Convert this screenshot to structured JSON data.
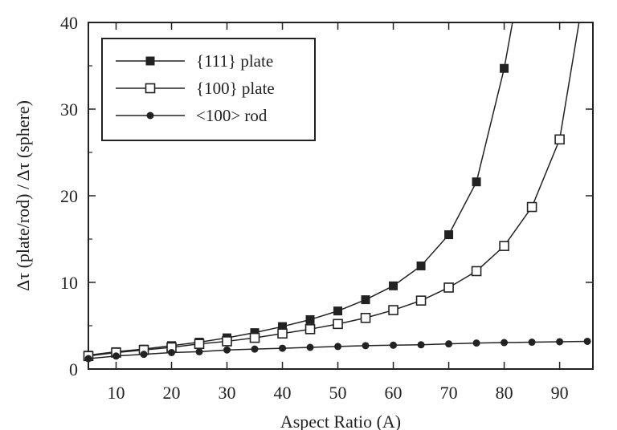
{
  "chart_data": {
    "type": "line",
    "title": "",
    "xlabel": "Aspect Ratio (A)",
    "ylabel": "Δτ (plate/rod) / Δτ (sphere)",
    "xlim": [
      5,
      96
    ],
    "ylim": [
      0,
      40
    ],
    "xticks": [
      10,
      20,
      30,
      40,
      50,
      60,
      70,
      80,
      90
    ],
    "yticks": [
      0,
      10,
      20,
      30,
      40
    ],
    "legend_position": "top-left",
    "series": [
      {
        "name": "{111} plate",
        "marker": "filled-square",
        "x": [
          5,
          10,
          15,
          20,
          25,
          30,
          35,
          40,
          45,
          50,
          55,
          60,
          65,
          70,
          75,
          80
        ],
        "y": [
          1.6,
          2.0,
          2.3,
          2.7,
          3.1,
          3.6,
          4.2,
          4.9,
          5.7,
          6.7,
          8.0,
          9.6,
          11.9,
          15.5,
          21.6,
          34.7
        ],
        "tail": {
          "x": 81.5,
          "y": 40
        }
      },
      {
        "name": "{100} plate",
        "marker": "open-square",
        "x": [
          5,
          10,
          15,
          20,
          25,
          30,
          35,
          40,
          45,
          50,
          55,
          60,
          65,
          70,
          75,
          80,
          85,
          90
        ],
        "y": [
          1.5,
          1.9,
          2.2,
          2.5,
          2.9,
          3.2,
          3.6,
          4.1,
          4.6,
          5.2,
          5.9,
          6.8,
          7.9,
          9.4,
          11.3,
          14.2,
          18.7,
          26.5
        ],
        "tail": {
          "x": 93.5,
          "y": 40
        }
      },
      {
        "name": "<100> rod",
        "marker": "filled-circle",
        "x": [
          5,
          10,
          15,
          20,
          25,
          30,
          35,
          40,
          45,
          50,
          55,
          60,
          65,
          70,
          75,
          80,
          85,
          90,
          95
        ],
        "y": [
          1.2,
          1.5,
          1.7,
          1.9,
          2.0,
          2.2,
          2.3,
          2.4,
          2.5,
          2.6,
          2.7,
          2.75,
          2.8,
          2.9,
          3.0,
          3.05,
          3.1,
          3.15,
          3.2
        ]
      }
    ]
  }
}
